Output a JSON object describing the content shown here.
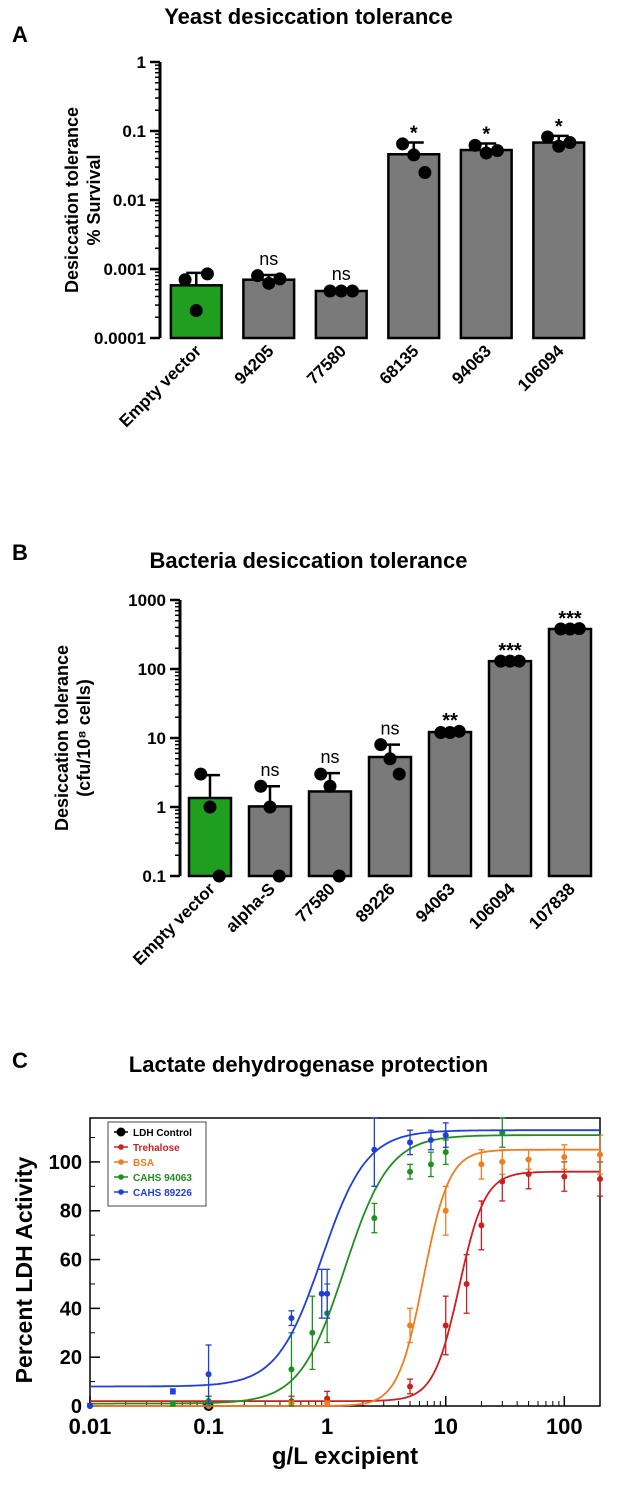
{
  "panels": {
    "A": {
      "letter": "A",
      "title": "Yeast desiccation tolerance"
    },
    "B": {
      "letter": "B",
      "title": "Bacteria desiccation tolerance"
    },
    "C": {
      "letter": "C",
      "title": "Lactate dehydrogenase protection"
    }
  },
  "colors": {
    "green": "#1f9e1f",
    "gray": "#7a7a7a",
    "black": "#000000"
  },
  "chart_data": [
    {
      "type": "bar",
      "title": "Yeast desiccation tolerance",
      "ylabel": [
        "Desiccation tolerance",
        "% Survival"
      ],
      "yscale": "log",
      "ylim": [
        0.0001,
        1
      ],
      "yticks": [
        "0.0001",
        "0.001",
        "0.01",
        "0.1",
        "1"
      ],
      "categories": [
        "Empty vector",
        "94205",
        "77580",
        "68135",
        "94063",
        "106094"
      ],
      "values": [
        0.00058,
        0.0007,
        0.00048,
        0.046,
        0.053,
        0.068
      ],
      "errors_upper": [
        0.00088,
        0.00082,
        0.0005,
        0.068,
        0.066,
        0.085
      ],
      "points": [
        [
          0.0007,
          0.00025,
          0.00085
        ],
        [
          0.0008,
          0.00062,
          0.00072
        ],
        [
          0.00048,
          0.00048,
          0.00048
        ],
        [
          0.065,
          0.045,
          0.025
        ],
        [
          0.062,
          0.048,
          0.052
        ],
        [
          0.082,
          0.06,
          0.068
        ]
      ],
      "bar_colors": [
        "green",
        "gray",
        "gray",
        "gray",
        "gray",
        "gray"
      ],
      "annotations": [
        "",
        "ns",
        "ns",
        "*",
        "*",
        "*"
      ]
    },
    {
      "type": "bar",
      "title": "Bacteria desiccation tolerance",
      "ylabel": [
        "Desiccation tolerance",
        "(cfu/10⁸ cells)"
      ],
      "yscale": "log",
      "ylim": [
        0.1,
        1000
      ],
      "yticks": [
        "0.1",
        "1",
        "10",
        "100",
        "1000"
      ],
      "categories": [
        "Empty vector",
        "alpha-S",
        "77580",
        "89226",
        "94063",
        "106094",
        "107838"
      ],
      "values": [
        1.35,
        1.02,
        1.68,
        5.3,
        12.2,
        130,
        380
      ],
      "errors_upper": [
        2.9,
        2.0,
        3.1,
        8.0,
        13.0,
        135,
        395
      ],
      "points": [
        [
          3.0,
          1.0,
          0.1
        ],
        [
          2.0,
          1.0,
          0.1
        ],
        [
          3.0,
          2.0,
          0.1
        ],
        [
          8.0,
          5.0,
          3.0
        ],
        [
          12.0,
          12.0,
          12.5
        ],
        [
          130,
          130,
          130
        ],
        [
          380,
          380,
          385
        ]
      ],
      "bar_colors": [
        "green",
        "gray",
        "gray",
        "gray",
        "gray",
        "gray",
        "gray"
      ],
      "annotations": [
        "",
        "ns",
        "ns",
        "ns",
        "**",
        "***",
        "***"
      ]
    },
    {
      "type": "scatter",
      "title": "Lactate dehydrogenase protection",
      "xlabel": "g/L excipient",
      "ylabel": "Percent LDH Activity",
      "xscale": "log",
      "xlim": [
        0.01,
        200
      ],
      "ylim": [
        0,
        118
      ],
      "xticks": [
        "0.01",
        "0.1",
        "1",
        "10",
        "100"
      ],
      "yticks": [
        "0",
        "20",
        "40",
        "60",
        "80",
        "100"
      ],
      "legend_position": "top-left",
      "series": [
        {
          "name": "LDH Control",
          "color": "#000000",
          "x": [
            0.1
          ],
          "y": [
            0
          ],
          "err": [
            0
          ]
        },
        {
          "name": "Trehalose",
          "color": "#cc1f1f",
          "fit": {
            "bottom": 2,
            "top": 96,
            "ec50": 13,
            "hill": 4
          },
          "x": [
            0.1,
            0.5,
            1,
            5,
            10,
            15,
            20,
            30,
            50,
            100,
            200
          ],
          "y": [
            2,
            2,
            3,
            8,
            33,
            50,
            74,
            92,
            95,
            94,
            93
          ],
          "err": [
            2,
            2,
            3,
            3,
            12,
            12,
            10,
            8,
            6,
            6,
            7
          ]
        },
        {
          "name": "BSA",
          "color": "#f07d1f",
          "fit": {
            "bottom": 0,
            "top": 105,
            "ec50": 6.5,
            "hill": 4
          },
          "x": [
            0.1,
            0.5,
            1,
            5,
            10,
            20,
            30,
            50,
            100,
            200
          ],
          "y": [
            0,
            1,
            1,
            33,
            80,
            99,
            100,
            101,
            102,
            103
          ],
          "err": [
            1,
            1,
            1,
            7,
            10,
            6,
            5,
            4,
            5,
            8
          ]
        },
        {
          "name": "CAHS 94063",
          "color": "#1f8f1f",
          "fit": {
            "bottom": 1,
            "top": 111,
            "ec50": 1.4,
            "hill": 2.3
          },
          "x": [
            0.01,
            0.05,
            0.1,
            0.5,
            0.75,
            1,
            2.5,
            5,
            7.5,
            10,
            30
          ],
          "y": [
            0,
            1,
            2,
            15,
            30,
            38,
            77,
            96,
            99,
            104,
            112
          ],
          "err": [
            1,
            1,
            2,
            15,
            15,
            12,
            6,
            3,
            5,
            5,
            6
          ]
        },
        {
          "name": "CAHS 89226",
          "color": "#1f3fd8",
          "fit": {
            "bottom": 8,
            "top": 113,
            "ec50": 0.9,
            "hill": 2.3
          },
          "x": [
            0.01,
            0.05,
            0.1,
            0.5,
            0.9,
            1,
            2.5,
            5,
            7.5,
            10
          ],
          "y": [
            0,
            6,
            13,
            36,
            46,
            46,
            105,
            108,
            109,
            111
          ],
          "err": [
            1,
            1,
            12,
            3,
            10,
            10,
            15,
            5,
            4,
            5
          ]
        }
      ]
    }
  ]
}
